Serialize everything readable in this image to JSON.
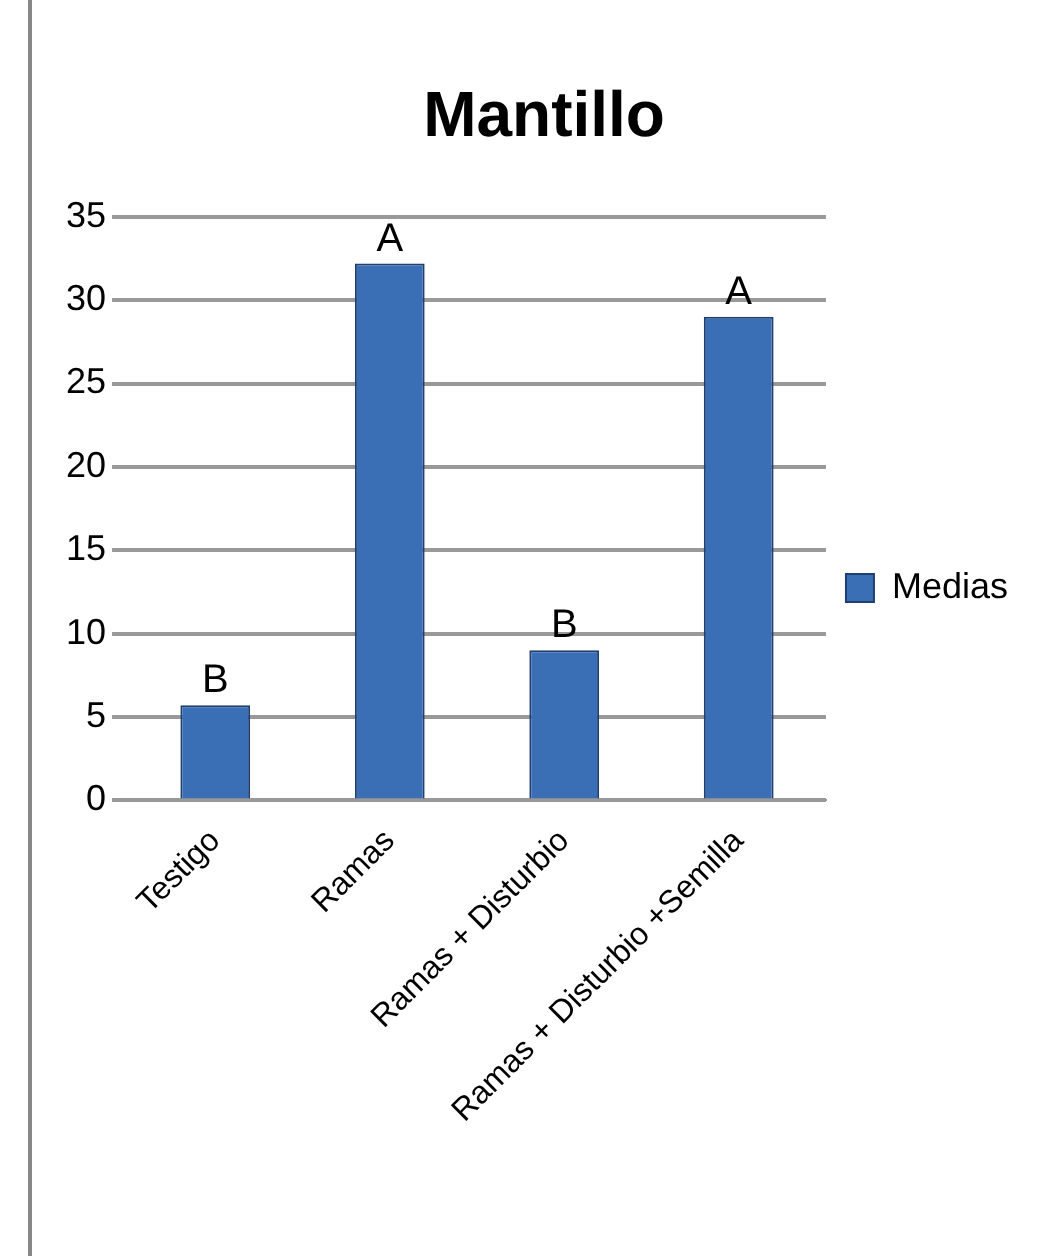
{
  "chart_data": {
    "type": "bar",
    "title": "Mantillo",
    "categories": [
      "Testigo",
      "Ramas",
      "Ramas + Disturbio",
      "Ramas + Disturbio +Semilla"
    ],
    "series": [
      {
        "name": "Medias",
        "color": "#3a6fb5",
        "values": [
          5.7,
          32.2,
          9.0,
          29.0
        ]
      }
    ],
    "ylim": [
      0,
      35
    ],
    "yticks": [
      0,
      5,
      10,
      15,
      20,
      25,
      30,
      35
    ],
    "grid": "y",
    "legend": "right",
    "annotations": [
      {
        "text": "B",
        "x": "Testigo",
        "y": 5.7
      },
      {
        "text": "A",
        "x": "Ramas",
        "y": 32.2
      },
      {
        "text": "B",
        "x": "Ramas + Disturbio",
        "y": 9.0
      },
      {
        "text": "A",
        "x": "Ramas + Disturbio +Semilla",
        "y": 29.0
      }
    ]
  }
}
